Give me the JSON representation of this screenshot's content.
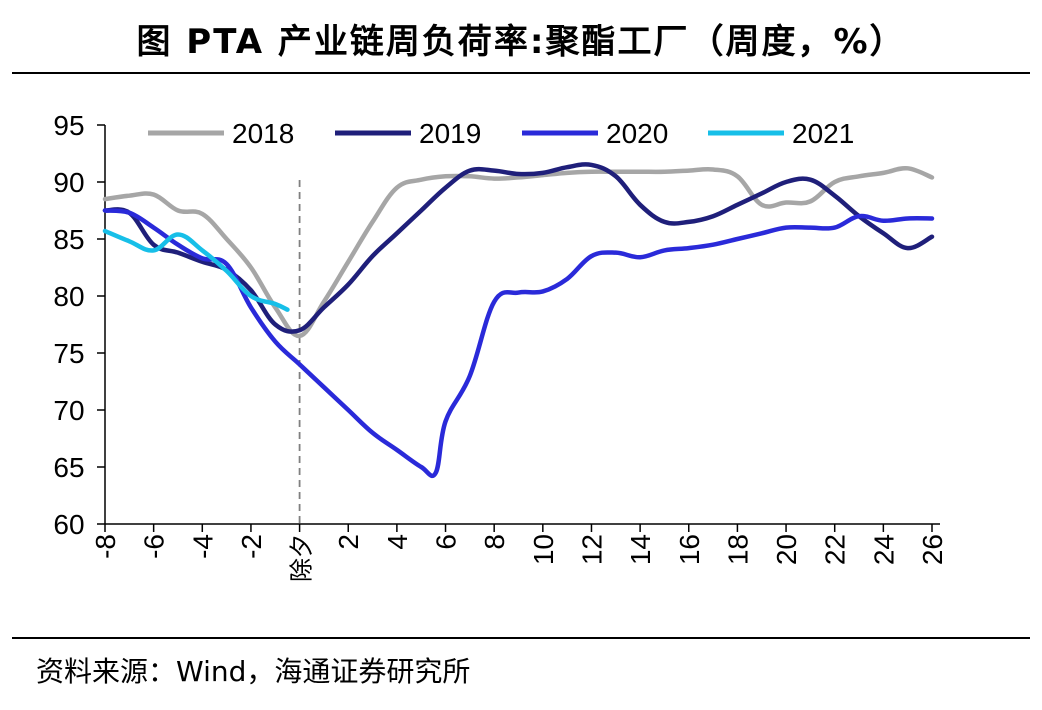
{
  "title": "图  PTA 产业链周负荷率:聚酯工厂（周度，%）",
  "source": "资料来源：Wind，海通证券研究所",
  "chart_data": {
    "type": "line",
    "ylim": [
      60,
      95
    ],
    "yticks": [
      60,
      65,
      70,
      75,
      80,
      85,
      90,
      95
    ],
    "xlim": [
      -8,
      26
    ],
    "xticks": [
      {
        "v": -8,
        "label": "-8"
      },
      {
        "v": -6,
        "label": "-6"
      },
      {
        "v": -4,
        "label": "-4"
      },
      {
        "v": -2,
        "label": "-2"
      },
      {
        "v": 0,
        "label": "除夕"
      },
      {
        "v": 2,
        "label": "2"
      },
      {
        "v": 4,
        "label": "4"
      },
      {
        "v": 6,
        "label": "6"
      },
      {
        "v": 8,
        "label": "8"
      },
      {
        "v": 10,
        "label": "10"
      },
      {
        "v": 12,
        "label": "12"
      },
      {
        "v": 14,
        "label": "14"
      },
      {
        "v": 16,
        "label": "16"
      },
      {
        "v": 18,
        "label": "18"
      },
      {
        "v": 20,
        "label": "20"
      },
      {
        "v": 22,
        "label": "22"
      },
      {
        "v": 24,
        "label": "24"
      },
      {
        "v": 26,
        "label": "26"
      }
    ],
    "reference_line_x": 0,
    "legend_position": "top",
    "series": [
      {
        "name": "2018",
        "color": "#a6a6a6",
        "x": [
          -8,
          -7,
          -6,
          -5,
          -4,
          -3,
          -2,
          -1,
          0,
          1,
          2,
          3,
          4,
          5,
          6,
          7,
          8,
          9,
          10,
          11,
          12,
          13,
          14,
          15,
          16,
          17,
          18,
          19,
          20,
          21,
          22,
          23,
          24,
          25,
          26
        ],
        "y": [
          88.5,
          88.8,
          88.9,
          87.5,
          87.2,
          85.0,
          82.5,
          79.0,
          76.5,
          79.5,
          83.0,
          86.5,
          89.5,
          90.2,
          90.5,
          90.5,
          90.3,
          90.4,
          90.6,
          90.8,
          90.9,
          90.9,
          90.9,
          90.9,
          91.0,
          91.1,
          90.5,
          88.0,
          88.2,
          88.3,
          90.0,
          90.5,
          90.8,
          91.2,
          90.4
        ]
      },
      {
        "name": "2019",
        "color": "#1f1f7a",
        "x": [
          -8,
          -7,
          -6,
          -5,
          -4,
          -3,
          -2,
          -1,
          0,
          1,
          2,
          3,
          4,
          5,
          6,
          7,
          8,
          9,
          10,
          11,
          12,
          13,
          14,
          15,
          16,
          17,
          18,
          19,
          20,
          21,
          22,
          23,
          24,
          25,
          26
        ],
        "y": [
          87.5,
          87.3,
          84.5,
          83.8,
          83.0,
          82.3,
          80.5,
          77.5,
          77.0,
          79.0,
          81.0,
          83.5,
          85.5,
          87.5,
          89.5,
          91.0,
          91.0,
          90.7,
          90.8,
          91.3,
          91.5,
          90.5,
          88.0,
          86.5,
          86.5,
          87.0,
          88.0,
          89.0,
          90.0,
          90.2,
          88.8,
          87.0,
          85.5,
          84.2,
          85.2
        ]
      },
      {
        "name": "2020",
        "color": "#2a2ad9",
        "x": [
          -8,
          -7,
          -6,
          -5,
          -4,
          -3,
          -2,
          -1,
          0,
          1,
          2,
          3,
          4,
          5,
          5.6,
          6,
          7,
          8,
          9,
          10,
          11,
          12,
          13,
          14,
          15,
          16,
          17,
          18,
          19,
          20,
          21,
          22,
          23,
          24,
          25,
          26
        ],
        "y": [
          87.5,
          87.3,
          86.0,
          84.5,
          83.3,
          82.8,
          79.0,
          76.0,
          74.0,
          72.0,
          70.0,
          68.0,
          66.5,
          65.0,
          64.5,
          69.0,
          73.0,
          79.5,
          80.3,
          80.4,
          81.5,
          83.5,
          83.8,
          83.4,
          84.0,
          84.2,
          84.5,
          85.0,
          85.5,
          86.0,
          86.0,
          86.0,
          87.0,
          86.6,
          86.8,
          86.8
        ]
      },
      {
        "name": "2021",
        "color": "#17bfe8",
        "x": [
          -8,
          -7,
          -6,
          -5,
          -4,
          -3,
          -2,
          -1,
          -0.5
        ],
        "y": [
          85.7,
          84.8,
          84.0,
          85.4,
          84.0,
          82.2,
          80.0,
          79.3,
          78.8
        ]
      }
    ]
  }
}
